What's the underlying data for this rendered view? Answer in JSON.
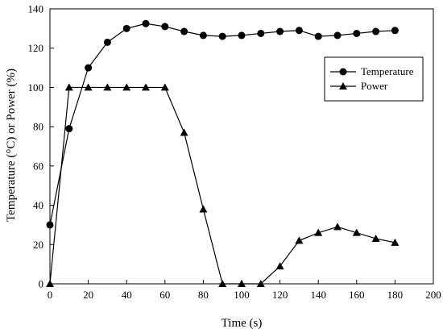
{
  "chart_data": {
    "type": "line",
    "title": "",
    "xlabel": "Time (s)",
    "ylabel": "Temperature (°C) or Power (%)",
    "xlim": [
      0,
      200
    ],
    "ylim": [
      0,
      140
    ],
    "xticks": [
      0,
      20,
      40,
      60,
      80,
      100,
      120,
      140,
      160,
      180,
      200
    ],
    "yticks": [
      0,
      20,
      40,
      60,
      80,
      100,
      120,
      140
    ],
    "grid": false,
    "legend": {
      "position": "top-right",
      "boxed": true
    },
    "series": [
      {
        "name": "Temperature",
        "marker": "circle",
        "color": "#000000",
        "x": [
          0,
          10,
          20,
          30,
          40,
          50,
          60,
          70,
          80,
          90,
          100,
          110,
          120,
          130,
          140,
          150,
          160,
          170,
          180
        ],
        "values": [
          30,
          79,
          110,
          123,
          130,
          132.5,
          131,
          128.5,
          126.5,
          126,
          126.5,
          127.5,
          128.5,
          129,
          126,
          126.5,
          127.5,
          128.5,
          129
        ]
      },
      {
        "name": "Power",
        "marker": "triangle",
        "color": "#000000",
        "x": [
          0,
          10,
          20,
          30,
          40,
          50,
          60,
          70,
          80,
          90,
          100,
          110,
          120,
          130,
          140,
          150,
          160,
          170,
          180
        ],
        "values": [
          0,
          100,
          100,
          100,
          100,
          100,
          100,
          77,
          38,
          0,
          0,
          0,
          9,
          22,
          26,
          29,
          26,
          23,
          21
        ]
      }
    ]
  }
}
